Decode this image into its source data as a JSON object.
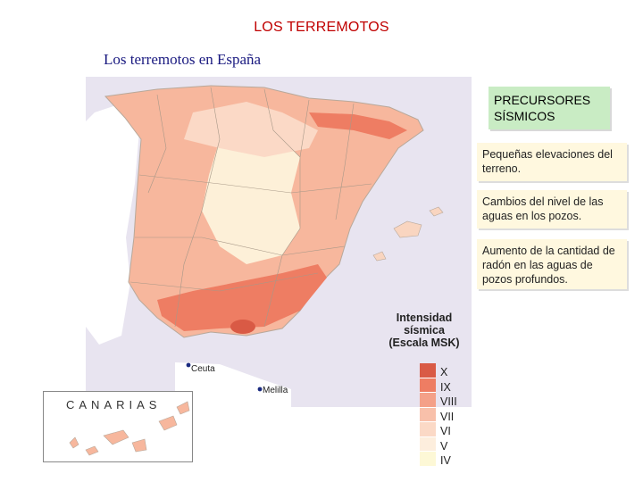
{
  "title": "LOS TERREMOTOS",
  "subtitle": "Los terremotos en España",
  "panel": {
    "heading": "PRECURSORES SÍSMICOS",
    "items": [
      "Pequeñas elevaciones del terreno.",
      "Cambios del nivel de las aguas en los pozos.",
      "Aumento de la cantidad de radón en las aguas de pozos profundos."
    ]
  },
  "map": {
    "cities": {
      "ceuta": "Ceuta",
      "melilla": "Melilla"
    },
    "inset_label": "CANARIAS",
    "legend": {
      "title_line1": "Intensidad",
      "title_line2": "sísmica",
      "title_line3": "(Escala MSK)",
      "levels": [
        "X",
        "IX",
        "VIII",
        "VII",
        "VI",
        "V",
        "IV"
      ],
      "colors": [
        "#d95a45",
        "#ee7d63",
        "#f4a088",
        "#f8c0aa",
        "#fbd9c6",
        "#fdeedd",
        "#fdf8d6"
      ]
    },
    "colors": {
      "sea": "#e8e4f0",
      "land_base": "#f9d5c0",
      "border": "#b8a89a"
    }
  }
}
